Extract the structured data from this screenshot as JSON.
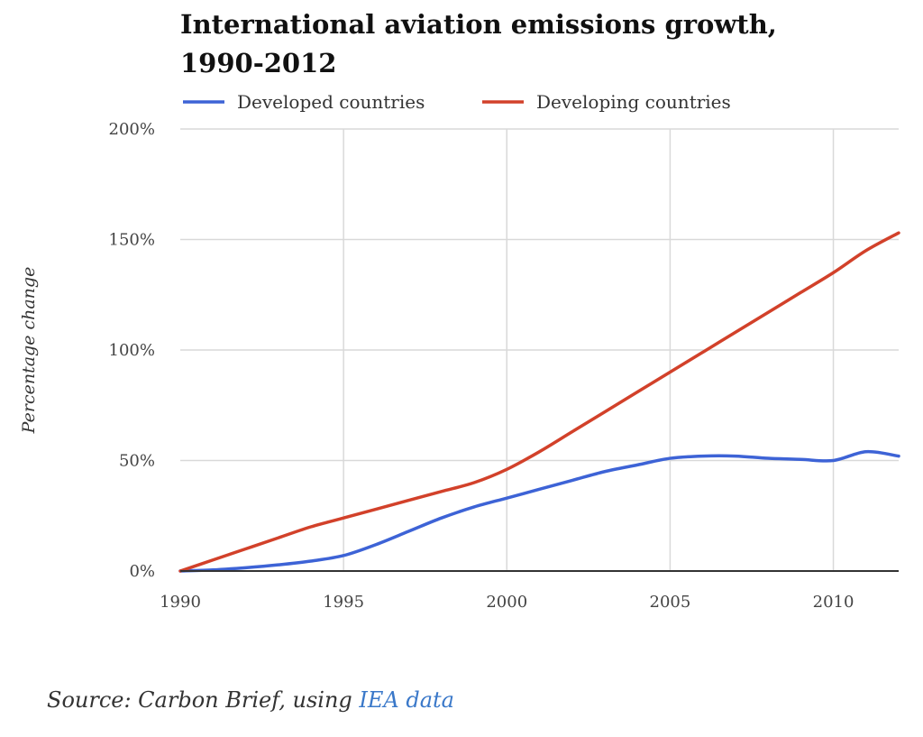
{
  "chart_data": {
    "type": "line",
    "title_line1": "International aviation emissions growth,",
    "title_line2": "1990-2012",
    "xlabel": "",
    "ylabel": "Percentage change",
    "xlim": [
      1990,
      2012
    ],
    "ylim": [
      0,
      200
    ],
    "x_ticks": [
      1990,
      1995,
      2000,
      2005,
      2010
    ],
    "x_tick_labels": [
      "1990",
      "1995",
      "2000",
      "2005",
      "2010"
    ],
    "y_ticks": [
      0,
      50,
      100,
      150,
      200
    ],
    "y_tick_labels": [
      "0%",
      "50%",
      "100%",
      "150%",
      "200%"
    ],
    "grid": true,
    "legend_position": "top",
    "series": [
      {
        "name": "Developed countries",
        "color": "#3d63d6",
        "x": [
          1990,
          1991,
          1992,
          1993,
          1994,
          1995,
          1996,
          1997,
          1998,
          1999,
          2000,
          2001,
          2002,
          2003,
          2004,
          2005,
          2006,
          2007,
          2008,
          2009,
          2010,
          2011,
          2012
        ],
        "values": [
          0,
          0.5,
          1.5,
          2.8,
          4.5,
          7,
          12,
          18,
          24,
          29,
          33,
          37,
          41,
          45,
          48,
          51,
          52,
          52,
          51,
          50.5,
          50,
          54,
          52
        ]
      },
      {
        "name": "Developing countries",
        "color": "#d2412a",
        "x": [
          1990,
          1991,
          1992,
          1993,
          1994,
          1995,
          1996,
          1997,
          1998,
          1999,
          2000,
          2001,
          2002,
          2003,
          2004,
          2005,
          2006,
          2007,
          2008,
          2009,
          2010,
          2011,
          2012
        ],
        "values": [
          0,
          5,
          10,
          15,
          20,
          24,
          28,
          32,
          36,
          40,
          46,
          54,
          63,
          72,
          81,
          90,
          99,
          108,
          117,
          126,
          135,
          145,
          153
        ]
      }
    ]
  },
  "source": {
    "prefix": "Source: Carbon Brief, using ",
    "link_text": "IEA data"
  }
}
